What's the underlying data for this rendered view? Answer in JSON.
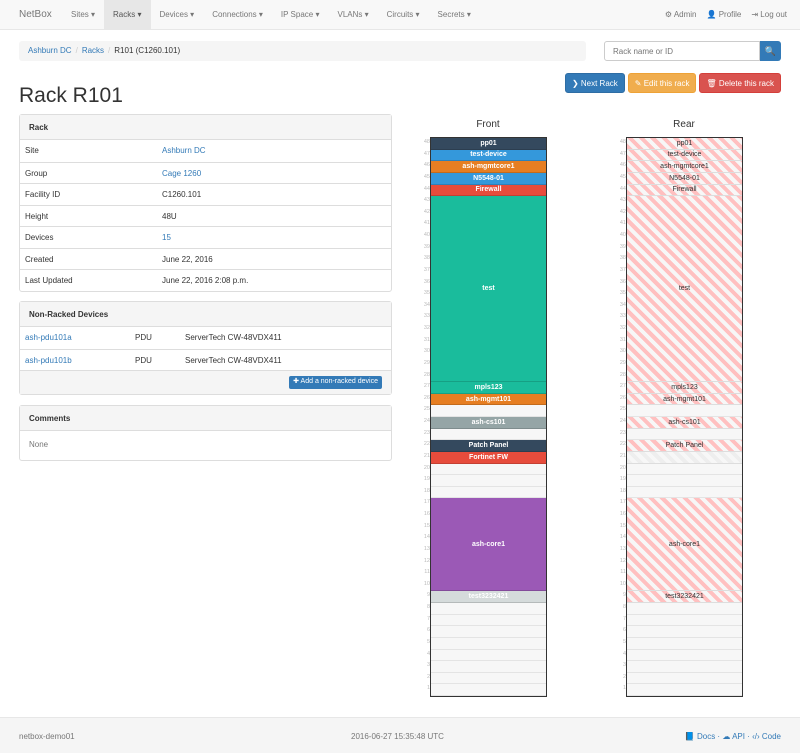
{
  "navbar": {
    "brand": "NetBox",
    "items": [
      {
        "label": "Sites ▾"
      },
      {
        "label": "Racks ▾",
        "active": true
      },
      {
        "label": "Devices ▾"
      },
      {
        "label": "Connections ▾"
      },
      {
        "label": "IP Space ▾"
      },
      {
        "label": "VLANs ▾"
      },
      {
        "label": "Circuits ▾"
      },
      {
        "label": "Secrets ▾"
      }
    ],
    "right": [
      {
        "icon": "gear-icon",
        "label": "⚙ Admin"
      },
      {
        "icon": "user-icon",
        "label": "👤 Profile"
      },
      {
        "icon": "logout-icon",
        "label": "⇥ Log out"
      }
    ]
  },
  "breadcrumb": [
    "Ashburn DC",
    "Racks",
    "R101 (C1260.101)"
  ],
  "search": {
    "placeholder": "Rack name or ID",
    "button": "🔍"
  },
  "actions": {
    "next": "❯ Next Rack",
    "edit": "✎ Edit this rack",
    "delete": "🗑 Delete this rack"
  },
  "title": "Rack R101",
  "rack_panel": {
    "heading": "Rack",
    "rows": [
      {
        "k": "Site",
        "v": "Ashburn DC",
        "link": true
      },
      {
        "k": "Group",
        "v": "Cage 1260",
        "link": true
      },
      {
        "k": "Facility ID",
        "v": "C1260.101"
      },
      {
        "k": "Height",
        "v": "48U"
      },
      {
        "k": "Devices",
        "v": "15",
        "link": true
      },
      {
        "k": "Created",
        "v": "June 22, 2016"
      },
      {
        "k": "Last Updated",
        "v": "June 22, 2016 2:08 p.m."
      }
    ]
  },
  "nonracked": {
    "heading": "Non-Racked Devices",
    "rows": [
      {
        "name": "ash-pdu101a",
        "role": "PDU",
        "type": "ServerTech CW-48VDX411"
      },
      {
        "name": "ash-pdu101b",
        "role": "PDU",
        "type": "ServerTech CW-48VDX411"
      }
    ],
    "add": "✚ Add a non-racked device"
  },
  "comments": {
    "heading": "Comments",
    "body": "None"
  },
  "elevation": {
    "front_label": "Front",
    "rear_label": "Rear",
    "height": 48,
    "devices": [
      {
        "name": "pp01",
        "u": 48,
        "h": 1,
        "color": "#34495e"
      },
      {
        "name": "test-device",
        "u": 47,
        "h": 1,
        "color": "#3498db"
      },
      {
        "name": "ash-mgmtcore1",
        "u": 46,
        "h": 1,
        "color": "#e67e22"
      },
      {
        "name": "N5548-01",
        "u": 45,
        "h": 1,
        "color": "#3498db"
      },
      {
        "name": "Firewall",
        "u": 44,
        "h": 1,
        "color": "#e74c3c"
      },
      {
        "name": "test",
        "u": 28,
        "h": 16,
        "color": "#1abc9c"
      },
      {
        "name": "mpls123",
        "u": 27,
        "h": 1,
        "color": "#1abc9c"
      },
      {
        "name": "ash-mgmt101",
        "u": 26,
        "h": 1,
        "color": "#e67e22"
      },
      {
        "name": "ash-cs101",
        "u": 24,
        "h": 1,
        "color": "#95a5a6"
      },
      {
        "name": "Patch Panel",
        "u": 22,
        "h": 1,
        "color": "#34495e"
      },
      {
        "name": "Fortinet FW",
        "u": 21,
        "h": 1,
        "color": "#e74c3c",
        "rear": "faint"
      },
      {
        "name": "ash-core1",
        "u": 10,
        "h": 8,
        "color": "#9b59b6"
      },
      {
        "name": "test3232421",
        "u": 9,
        "h": 1,
        "color": "#d5dbdb"
      }
    ]
  },
  "footer": {
    "host": "netbox-demo01",
    "time": "2016-06-27 15:35:48 UTC",
    "links": "📘 Docs · ☁ API · ‹/› Code"
  }
}
